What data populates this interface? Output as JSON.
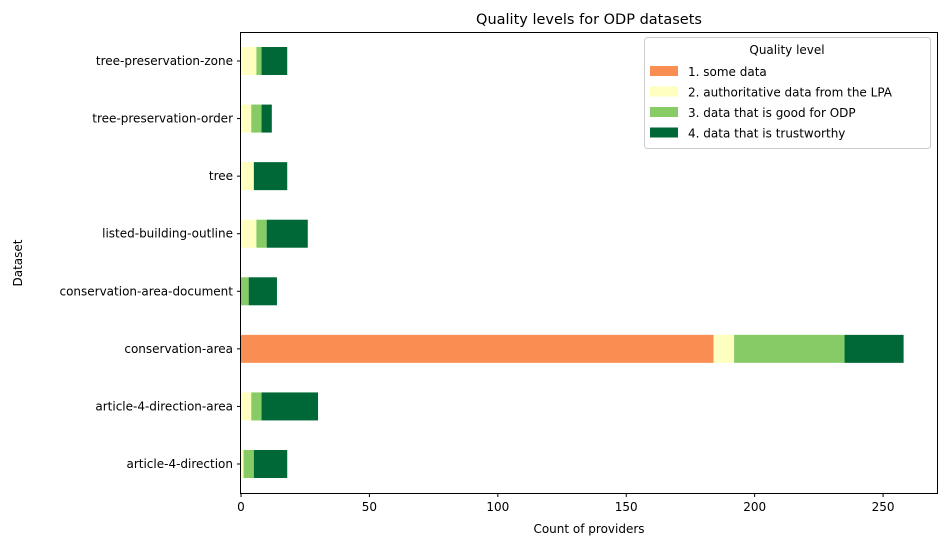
{
  "chart_data": {
    "type": "bar",
    "orientation": "horizontal",
    "stacked": true,
    "title": "Quality levels for ODP datasets",
    "xlabel": "Count of providers",
    "ylabel": "Dataset",
    "xlim": [
      0,
      271
    ],
    "xticks": [
      0,
      50,
      100,
      150,
      200,
      250
    ],
    "grid": false,
    "legend": {
      "title": "Quality level",
      "placement": "top-right"
    },
    "categories": [
      "article-4-direction",
      "article-4-direction-area",
      "conservation-area",
      "conservation-area-document",
      "listed-building-outline",
      "tree",
      "tree-preservation-order",
      "tree-preservation-zone"
    ],
    "series": [
      {
        "name": "1. some data",
        "color": "#f98e52",
        "values": [
          0,
          0,
          184,
          0,
          0,
          0,
          0,
          0
        ]
      },
      {
        "name": "2. authoritative data from the LPA",
        "color": "#ffffbf",
        "values": [
          1,
          4,
          8,
          0,
          6,
          5,
          4,
          6
        ]
      },
      {
        "name": "3. data that is good for ODP",
        "color": "#86cb66",
        "values": [
          4,
          4,
          43,
          3,
          4,
          0,
          4,
          2
        ]
      },
      {
        "name": "4. data that is trustworthy",
        "color": "#006837",
        "values": [
          13,
          22,
          23,
          11,
          16,
          13,
          4,
          10
        ]
      }
    ]
  }
}
